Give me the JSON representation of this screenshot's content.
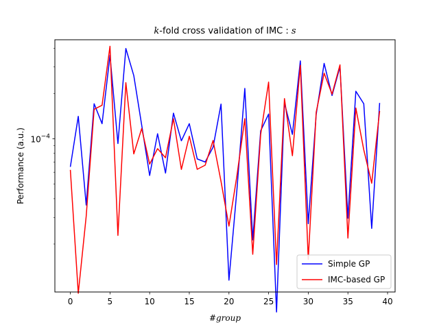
{
  "chart_data": {
    "type": "line",
    "title_prefix": "k",
    "title_main": "-fold cross validation of IMC : ",
    "title_suffix": "s",
    "xlabel": "#group",
    "ylabel": "Performance (a.u.)",
    "xlim": [
      -1.95,
      40.95
    ],
    "ylim": [
      9.6e-06,
      0.000455
    ],
    "y_scale": "log",
    "xticks": [
      0,
      5,
      10,
      15,
      20,
      25,
      30,
      35,
      40
    ],
    "yticks": [
      {
        "value": 0.0001,
        "label_base": "10",
        "label_exp": "−4"
      }
    ],
    "grid": false,
    "legend_position": "lower right",
    "x": [
      0,
      1,
      2,
      3,
      4,
      5,
      6,
      7,
      8,
      9,
      10,
      11,
      12,
      13,
      14,
      15,
      16,
      17,
      18,
      19,
      20,
      21,
      22,
      23,
      24,
      25,
      26,
      27,
      28,
      29,
      30,
      31,
      32,
      33,
      34,
      35,
      36,
      37,
      38,
      39
    ],
    "series": [
      {
        "name": "Simple GP",
        "color": "#0000ff",
        "values": [
          6.51e-05,
          0.000141,
          3.63e-05,
          0.000171,
          0.000126,
          0.000358,
          9.3e-05,
          0.000398,
          0.000263,
          0.000123,
          5.71e-05,
          0.000108,
          5.92e-05,
          0.000148,
          9.7e-05,
          0.000126,
          7.35e-05,
          7.01e-05,
          8.8e-05,
          0.00017,
          1.15e-05,
          4.55e-05,
          0.000216,
          2.13e-05,
          0.000113,
          0.000146,
          7.07e-06,
          0.000173,
          0.000107,
          0.000329,
          2.73e-05,
          0.000145,
          0.000317,
          0.000194,
          0.000301,
          2.97e-05,
          0.000207,
          0.000171,
          2.54e-05,
          0.000173
        ]
      },
      {
        "name": "IMC-based GP",
        "color": "#ff0000",
        "values": [
          6.22e-05,
          9.41e-06,
          3.06e-05,
          0.000157,
          0.000167,
          0.000412,
          2.28e-05,
          0.000236,
          7.94e-05,
          0.000117,
          6.79e-05,
          8.6e-05,
          7.49e-05,
          0.000136,
          6.26e-05,
          0.000104,
          6.27e-05,
          6.68e-05,
          9.74e-05,
          5.21e-05,
          2.63e-05,
          5.66e-05,
          0.000136,
          1.71e-05,
          0.000107,
          0.000238,
          1.46e-05,
          0.000185,
          7.72e-05,
          0.000308,
          1.58e-05,
          0.00015,
          0.000273,
          0.000198,
          0.00031,
          2.19e-05,
          0.00016,
          8.45e-05,
          5.07e-05,
          0.000153
        ]
      }
    ]
  }
}
